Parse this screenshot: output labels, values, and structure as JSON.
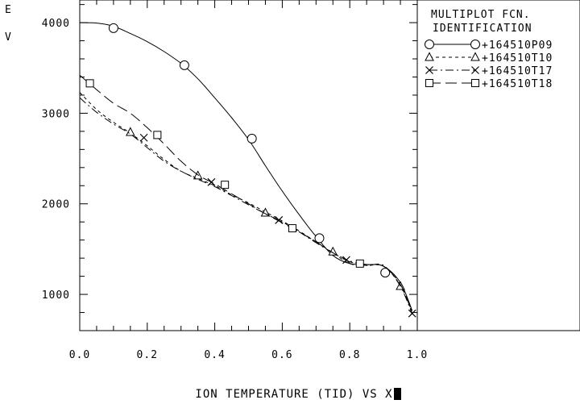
{
  "chart_data": {
    "type": "line",
    "title": "",
    "xlabel": "ION TEMPERATURE (TID) VS X",
    "ylabel": "E V",
    "xlim": [
      0.0,
      1.0
    ],
    "ylim": [
      600,
      4250
    ],
    "x_ticks": [
      0.0,
      0.2,
      0.4,
      0.6,
      0.8,
      1.0
    ],
    "x_tick_labels": [
      "0.0",
      "0.2",
      "0.4",
      "0.6",
      "0.8",
      "1.0"
    ],
    "y_ticks": [
      1000,
      2000,
      3000,
      4000
    ],
    "y_tick_labels": [
      "1000",
      "2000",
      "3000",
      "4000"
    ],
    "grid": false,
    "legend_position": "right-panel",
    "legend_title": [
      "MULTIPLOT FCN.",
      "IDENTIFICATION"
    ],
    "series": [
      {
        "name": "+164510P09",
        "marker": "circle",
        "dash": "solid",
        "curve": [
          [
            0.0,
            4000
          ],
          [
            0.05,
            3995
          ],
          [
            0.1,
            3960
          ],
          [
            0.15,
            3880
          ],
          [
            0.2,
            3790
          ],
          [
            0.25,
            3680
          ],
          [
            0.3,
            3550
          ],
          [
            0.35,
            3380
          ],
          [
            0.4,
            3170
          ],
          [
            0.45,
            2950
          ],
          [
            0.5,
            2710
          ],
          [
            0.55,
            2420
          ],
          [
            0.6,
            2140
          ],
          [
            0.65,
            1880
          ],
          [
            0.7,
            1640
          ],
          [
            0.75,
            1430
          ],
          [
            0.8,
            1340
          ],
          [
            0.85,
            1330
          ],
          [
            0.9,
            1310
          ],
          [
            0.95,
            1130
          ],
          [
            0.985,
            820
          ]
        ],
        "markers": [
          [
            0.1,
            3940
          ],
          [
            0.31,
            3530
          ],
          [
            0.51,
            2720
          ],
          [
            0.71,
            1620
          ],
          [
            0.905,
            1240
          ]
        ]
      },
      {
        "name": "+164510T10",
        "marker": "triangle",
        "dash": "dashed",
        "curve": [
          [
            0.0,
            3230
          ],
          [
            0.05,
            3040
          ],
          [
            0.1,
            2900
          ],
          [
            0.15,
            2780
          ],
          [
            0.2,
            2640
          ],
          [
            0.25,
            2490
          ],
          [
            0.3,
            2360
          ],
          [
            0.35,
            2280
          ],
          [
            0.4,
            2200
          ],
          [
            0.45,
            2100
          ],
          [
            0.5,
            2010
          ],
          [
            0.55,
            1910
          ],
          [
            0.6,
            1810
          ],
          [
            0.65,
            1700
          ],
          [
            0.7,
            1580
          ],
          [
            0.75,
            1460
          ],
          [
            0.8,
            1340
          ],
          [
            0.85,
            1320
          ],
          [
            0.9,
            1310
          ],
          [
            0.95,
            1100
          ],
          [
            0.985,
            800
          ]
        ],
        "markers": [
          [
            0.15,
            2790
          ],
          [
            0.35,
            2310
          ],
          [
            0.55,
            1900
          ],
          [
            0.75,
            1470
          ],
          [
            0.95,
            1090
          ]
        ]
      },
      {
        "name": "+164510T17",
        "marker": "x",
        "dash": "dashdot",
        "curve": [
          [
            0.0,
            3170
          ],
          [
            0.05,
            3010
          ],
          [
            0.1,
            2880
          ],
          [
            0.15,
            2770
          ],
          [
            0.2,
            2620
          ],
          [
            0.25,
            2470
          ],
          [
            0.3,
            2360
          ],
          [
            0.35,
            2270
          ],
          [
            0.4,
            2190
          ],
          [
            0.45,
            2090
          ],
          [
            0.5,
            1990
          ],
          [
            0.55,
            1890
          ],
          [
            0.6,
            1800
          ],
          [
            0.65,
            1690
          ],
          [
            0.7,
            1570
          ],
          [
            0.75,
            1460
          ],
          [
            0.8,
            1370
          ],
          [
            0.85,
            1320
          ],
          [
            0.9,
            1320
          ],
          [
            0.95,
            1090
          ],
          [
            0.985,
            780
          ]
        ],
        "markers": [
          [
            0.19,
            2730
          ],
          [
            0.39,
            2240
          ],
          [
            0.59,
            1820
          ],
          [
            0.79,
            1380
          ],
          [
            0.985,
            790
          ]
        ]
      },
      {
        "name": "+164510T18",
        "marker": "square",
        "dash": "longdash",
        "curve": [
          [
            0.0,
            3420
          ],
          [
            0.05,
            3260
          ],
          [
            0.1,
            3110
          ],
          [
            0.15,
            3000
          ],
          [
            0.2,
            2840
          ],
          [
            0.25,
            2660
          ],
          [
            0.3,
            2470
          ],
          [
            0.35,
            2320
          ],
          [
            0.4,
            2220
          ],
          [
            0.45,
            2110
          ],
          [
            0.5,
            2000
          ],
          [
            0.55,
            1890
          ],
          [
            0.6,
            1790
          ],
          [
            0.65,
            1690
          ],
          [
            0.7,
            1580
          ],
          [
            0.75,
            1460
          ],
          [
            0.8,
            1360
          ],
          [
            0.85,
            1330
          ],
          [
            0.9,
            1310
          ],
          [
            0.95,
            1110
          ],
          [
            0.985,
            800
          ]
        ],
        "markers": [
          [
            0.03,
            3330
          ],
          [
            0.23,
            2760
          ],
          [
            0.43,
            2210
          ],
          [
            0.63,
            1730
          ],
          [
            0.83,
            1340
          ]
        ]
      }
    ]
  }
}
